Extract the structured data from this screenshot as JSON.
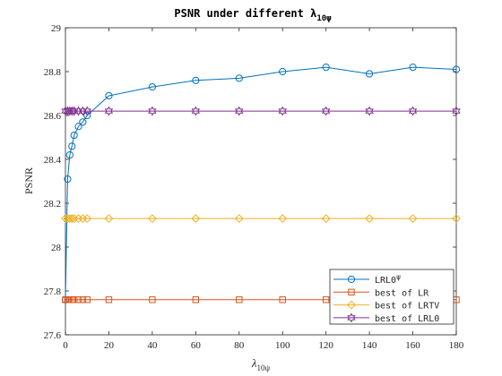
{
  "chart_data": {
    "type": "line",
    "title": "PSNR under different λ",
    "title_sub": "10ψ",
    "xlabel": "λ",
    "xlabel_sub": "10ψ",
    "ylabel": "PSNR",
    "xlim": [
      0,
      180
    ],
    "ylim": [
      27.6,
      29
    ],
    "xticks": [
      0,
      20,
      40,
      60,
      80,
      100,
      120,
      140,
      160,
      180
    ],
    "yticks": [
      27.6,
      27.8,
      28,
      28.2,
      28.4,
      28.6,
      28.8,
      29
    ],
    "ytick_labels": [
      "27.6",
      "27.8",
      "28",
      "28.2",
      "28.4",
      "28.6",
      "28.8",
      "29"
    ],
    "grid": false,
    "legend_position": "bottom-right",
    "x": [
      0,
      1,
      2,
      3,
      4,
      6,
      8,
      10,
      20,
      40,
      60,
      80,
      100,
      120,
      140,
      160,
      180
    ],
    "series": [
      {
        "name": "LRL0",
        "name_sup": "ψ",
        "color": "#0072BD",
        "marker": "circle",
        "values": [
          27.76,
          28.31,
          28.42,
          28.46,
          28.51,
          28.55,
          28.57,
          28.6,
          28.69,
          28.73,
          28.76,
          28.77,
          28.8,
          28.82,
          28.79,
          28.82,
          28.81
        ]
      },
      {
        "name": "best of LR",
        "color": "#D95319",
        "marker": "square",
        "values": [
          27.76,
          27.76,
          27.76,
          27.76,
          27.76,
          27.76,
          27.76,
          27.76,
          27.76,
          27.76,
          27.76,
          27.76,
          27.76,
          27.76,
          27.76,
          27.76,
          27.76
        ]
      },
      {
        "name": "best of LRTV",
        "color": "#EDB120",
        "marker": "diamond",
        "values": [
          28.13,
          28.13,
          28.13,
          28.13,
          28.13,
          28.13,
          28.13,
          28.13,
          28.13,
          28.13,
          28.13,
          28.13,
          28.13,
          28.13,
          28.13,
          28.13,
          28.13
        ]
      },
      {
        "name": "best of LRL0",
        "color": "#7E2F8E",
        "marker": "hexagram",
        "values": [
          28.62,
          28.62,
          28.62,
          28.62,
          28.62,
          28.62,
          28.62,
          28.62,
          28.62,
          28.62,
          28.62,
          28.62,
          28.62,
          28.62,
          28.62,
          28.62,
          28.62
        ]
      }
    ]
  }
}
